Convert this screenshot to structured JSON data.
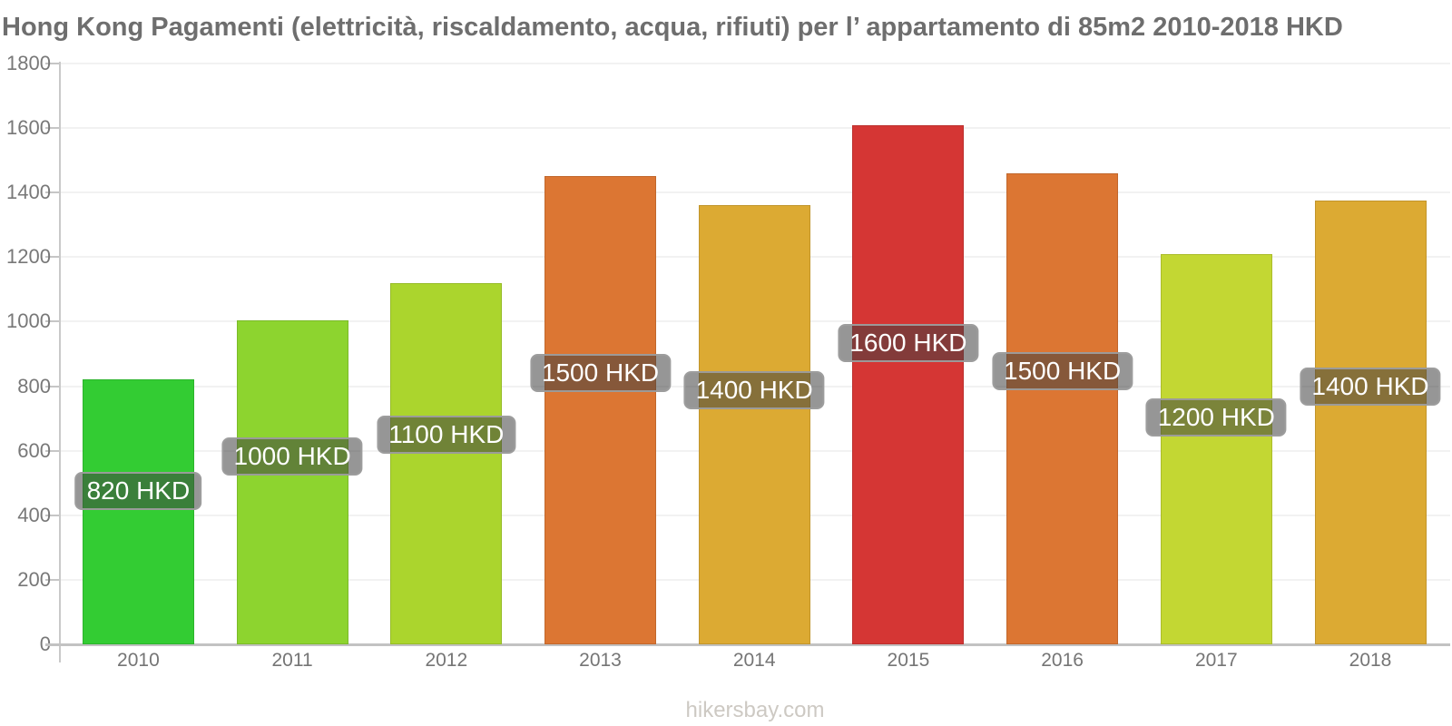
{
  "title": "Hong Kong Pagamenti (elettricità, riscaldamento, acqua, rifiuti) per l’ appartamento di 85m2 2010-2018 HKD",
  "footer": "hikersbay.com",
  "chart_data": {
    "type": "bar",
    "title": "Hong Kong Pagamenti (elettricità, riscaldamento, acqua, rifiuti) per l’ appartamento di 85m2 2010-2018 HKD",
    "xlabel": "",
    "ylabel": "",
    "unit": "HKD",
    "ylim": [
      0,
      1800
    ],
    "yticks": [
      0,
      200,
      400,
      600,
      800,
      1000,
      1200,
      1400,
      1600,
      1800
    ],
    "grid": true,
    "legend": false,
    "categories": [
      "2010",
      "2011",
      "2012",
      "2013",
      "2014",
      "2015",
      "2016",
      "2017",
      "2018"
    ],
    "values": [
      820,
      1000,
      1100,
      1500,
      1400,
      1600,
      1500,
      1200,
      1400
    ],
    "bar_labels": [
      "820 HKD",
      "1000 HKD",
      "1100 HKD",
      "1500 HKD",
      "1400 HKD",
      "1600 HKD",
      "1500 HKD",
      "1200 HKD",
      "1400 HKD"
    ],
    "bar_heights_estimated": [
      820,
      1005,
      1120,
      1450,
      1360,
      1610,
      1460,
      1210,
      1375
    ],
    "bar_colors": [
      "#33cc33",
      "#8dd42f",
      "#abd52d",
      "#dc7633",
      "#dcaa33",
      "#d53634",
      "#dc7633",
      "#c3d733",
      "#dcaa33"
    ],
    "colors": {
      "axis": "#c2c2c2",
      "gridline": "#f2f2f2",
      "tick_label": "#787878",
      "title": "#6e6e6e",
      "badge_text": "#ffffff",
      "footer": "#cdc9c3"
    }
  }
}
